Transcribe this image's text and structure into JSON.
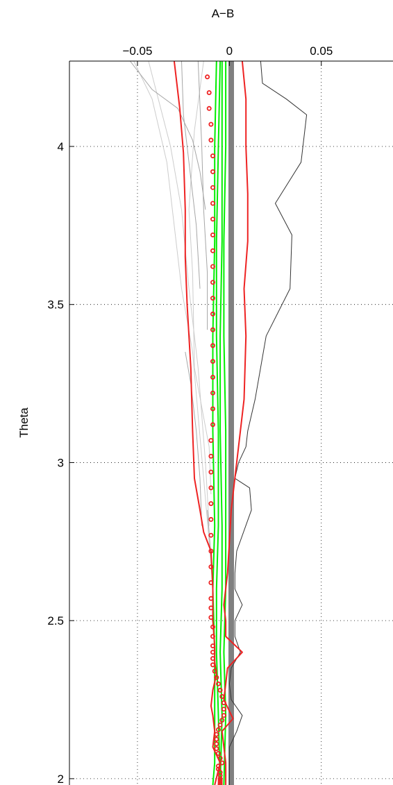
{
  "chart_data": {
    "type": "line",
    "title": "A−B",
    "xlabel": "A−B",
    "ylabel": "Theta",
    "x_axis_position": "top",
    "xlim": [
      -0.087,
      0.089
    ],
    "ylim": [
      1.98,
      4.27
    ],
    "xticks": [
      -0.05,
      0,
      0.05
    ],
    "xtick_labels": [
      "−0.05",
      "0",
      "0.05"
    ],
    "yticks": [
      2,
      2.5,
      3,
      3.5,
      4
    ],
    "ytick_labels": [
      "2",
      "2.5",
      "3",
      "3.5",
      "4"
    ],
    "grid": true,
    "colors": {
      "gray_light": "#cccccc",
      "gray_mid": "#a6a6a6",
      "gray_dark": "#333333",
      "green": "#00ee00",
      "red": "#ee2222",
      "zero_band": "#808080"
    },
    "series": [
      {
        "style": "zero-band",
        "color": "#808080",
        "x": [
          0.001,
          0.001
        ],
        "y": [
          1.98,
          4.27
        ]
      },
      {
        "style": "line",
        "color": "#cccccc",
        "x": [
          -0.014,
          -0.019,
          -0.022,
          -0.02,
          -0.019,
          -0.011,
          -0.01
        ],
        "y": [
          4.27,
          4.05,
          3.8,
          3.6,
          3.3,
          3.05,
          2.9
        ]
      },
      {
        "style": "line",
        "color": "#cccccc",
        "x": [
          -0.052,
          -0.042,
          -0.034,
          -0.03,
          -0.026,
          -0.02,
          -0.017,
          -0.014,
          -0.011,
          -0.009
        ],
        "y": [
          4.27,
          4.15,
          3.95,
          3.75,
          3.55,
          3.35,
          3.15,
          2.95,
          2.75,
          2.6
        ]
      },
      {
        "style": "line",
        "color": "#cccccc",
        "x": [
          -0.044,
          -0.032,
          -0.026,
          -0.022,
          -0.017,
          -0.013,
          -0.011
        ],
        "y": [
          4.27,
          4.0,
          3.8,
          3.55,
          3.3,
          3.0,
          2.8
        ]
      },
      {
        "style": "line",
        "color": "#a6a6a6",
        "x": [
          -0.054,
          -0.042,
          -0.028,
          -0.02,
          -0.016,
          -0.013
        ],
        "y": [
          4.27,
          4.18,
          4.12,
          4.02,
          3.92,
          3.8
        ]
      },
      {
        "style": "line",
        "color": "#a6a6a6",
        "x": [
          -0.026,
          -0.025,
          -0.022,
          -0.018,
          -0.016
        ],
        "y": [
          4.27,
          4.1,
          3.95,
          3.75,
          3.55
        ]
      },
      {
        "style": "line",
        "color": "#a6a6a6",
        "x": [
          -0.017,
          -0.015,
          -0.014,
          -0.012,
          -0.012
        ],
        "y": [
          4.27,
          4.0,
          3.8,
          3.6,
          3.42
        ]
      },
      {
        "style": "line",
        "color": "#a6a6a6",
        "x": [
          -0.024,
          -0.021,
          -0.018,
          -0.016,
          -0.015
        ],
        "y": [
          3.35,
          3.25,
          3.1,
          2.95,
          2.8
        ]
      },
      {
        "style": "line",
        "color": "#a6a6a6",
        "x": [
          -0.012,
          -0.011,
          -0.01,
          -0.009
        ],
        "y": [
          2.85,
          2.78,
          2.7,
          2.62
        ]
      },
      {
        "style": "line",
        "color": "#333333",
        "x": [
          0.017,
          0.018,
          0.031,
          0.042,
          0.039,
          0.025,
          0.034,
          0.033,
          0.02,
          0.014,
          0.01,
          0.009,
          0.005,
          0.003,
          0.011,
          0.012,
          0.004,
          0.003,
          0.003,
          0.007,
          0.003,
          0.003,
          0.006,
          0.001,
          0.0,
          0.001,
          0.007,
          0.004,
          0.0,
          0.0
        ],
        "y": [
          4.27,
          4.2,
          4.15,
          4.1,
          3.95,
          3.82,
          3.72,
          3.55,
          3.4,
          3.2,
          3.1,
          3.05,
          3.0,
          2.95,
          2.92,
          2.85,
          2.72,
          2.65,
          2.6,
          2.55,
          2.5,
          2.45,
          2.4,
          2.35,
          2.3,
          2.25,
          2.2,
          2.15,
          2.1,
          1.98
        ]
      },
      {
        "style": "line",
        "color": "#00ee00",
        "x": [
          -0.007,
          -0.008,
          -0.008,
          -0.009,
          -0.009,
          -0.008,
          -0.009,
          -0.008,
          -0.008,
          -0.008,
          -0.009
        ],
        "y": [
          4.27,
          4.0,
          3.7,
          3.4,
          3.1,
          2.8,
          2.6,
          2.4,
          2.2,
          2.05,
          1.98
        ]
      },
      {
        "style": "line",
        "color": "#00ee00",
        "x": [
          -0.002,
          -0.002,
          -0.003,
          -0.003,
          -0.002,
          -0.002,
          -0.002,
          -0.003,
          -0.002,
          -0.003
        ],
        "y": [
          4.27,
          4.0,
          3.7,
          3.4,
          3.1,
          2.8,
          2.6,
          2.4,
          2.2,
          1.98
        ]
      },
      {
        "style": "line",
        "color": "#00ee00",
        "x": [
          -0.004,
          -0.004,
          -0.004,
          -0.005,
          -0.005,
          -0.004,
          -0.004,
          -0.005,
          -0.004,
          -0.005
        ],
        "y": [
          4.27,
          4.0,
          3.7,
          3.4,
          3.1,
          2.8,
          2.6,
          2.4,
          2.2,
          1.98
        ]
      },
      {
        "style": "line",
        "color": "#00ee00",
        "x": [
          -0.005,
          -0.006,
          -0.007,
          -0.007,
          -0.006,
          -0.006,
          -0.007,
          -0.007,
          -0.006,
          -0.005
        ],
        "y": [
          4.27,
          4.0,
          3.7,
          3.4,
          3.1,
          2.8,
          2.6,
          2.4,
          2.2,
          1.98
        ]
      },
      {
        "style": "line",
        "color": "#ee2222",
        "x": [
          -0.03,
          -0.027,
          -0.025,
          -0.024,
          -0.024,
          -0.023,
          -0.021,
          -0.02,
          -0.019,
          -0.016,
          -0.014,
          -0.01,
          -0.009,
          -0.009,
          -0.008,
          -0.008,
          -0.007,
          -0.009,
          -0.01,
          -0.009,
          -0.008,
          -0.009,
          -0.005,
          -0.008
        ],
        "y": [
          4.27,
          4.12,
          3.98,
          3.8,
          3.65,
          3.5,
          3.3,
          3.1,
          2.95,
          2.85,
          2.78,
          2.72,
          2.6,
          2.5,
          2.42,
          2.37,
          2.33,
          2.28,
          2.23,
          2.2,
          2.15,
          2.1,
          2.05,
          1.98
        ]
      },
      {
        "style": "line",
        "color": "#ee2222",
        "x": [
          0.007,
          0.009,
          0.009,
          0.01,
          0.01,
          0.008,
          0.009,
          0.008,
          0.004,
          0.001,
          0.0,
          -0.001,
          -0.003,
          -0.002,
          -0.002,
          0.007,
          -0.001,
          -0.002,
          -0.003,
          0.002,
          -0.004,
          -0.002,
          -0.002
        ],
        "y": [
          4.27,
          4.15,
          4.0,
          3.85,
          3.7,
          3.55,
          3.4,
          3.2,
          3.0,
          2.85,
          2.75,
          2.65,
          2.55,
          2.5,
          2.45,
          2.4,
          2.35,
          2.3,
          2.25,
          2.19,
          2.15,
          2.05,
          1.98
        ]
      },
      {
        "style": "markers",
        "color": "#ee2222",
        "x": [
          -0.012,
          -0.011,
          -0.011,
          -0.01,
          -0.01,
          -0.009,
          -0.009,
          -0.009,
          -0.009,
          -0.009,
          -0.009,
          -0.009,
          -0.009,
          -0.009,
          -0.009,
          -0.009,
          -0.009,
          -0.009,
          -0.009,
          -0.009,
          -0.009,
          -0.009,
          -0.009,
          -0.01,
          -0.01,
          -0.01,
          -0.01,
          -0.01,
          -0.01,
          -0.01,
          -0.01,
          -0.01,
          -0.01,
          -0.01,
          -0.01,
          -0.01,
          -0.009,
          -0.009,
          -0.009,
          -0.009,
          -0.009,
          -0.009,
          -0.008,
          -0.007,
          -0.006,
          -0.005,
          -0.004,
          -0.003,
          -0.003,
          -0.003,
          -0.004,
          -0.005,
          -0.006,
          -0.007,
          -0.007,
          -0.007,
          -0.007,
          -0.006,
          -0.005,
          -0.004,
          -0.006,
          -0.006,
          -0.005,
          -0.005,
          -0.005,
          -0.005,
          -0.005,
          -0.005,
          -0.005,
          -0.005,
          -0.005,
          -0.005,
          -0.005,
          -0.005,
          -0.005
        ],
        "y": [
          4.22,
          4.17,
          4.12,
          4.07,
          4.02,
          3.97,
          3.92,
          3.87,
          3.82,
          3.77,
          3.72,
          3.67,
          3.62,
          3.57,
          3.52,
          3.47,
          3.42,
          3.37,
          3.32,
          3.27,
          3.22,
          3.17,
          3.12,
          3.07,
          3.02,
          2.97,
          2.92,
          2.87,
          2.82,
          2.77,
          2.72,
          2.67,
          2.62,
          2.57,
          2.54,
          2.51,
          2.48,
          2.45,
          2.42,
          2.4,
          2.38,
          2.36,
          2.34,
          2.32,
          2.3,
          2.28,
          2.26,
          2.24,
          2.22,
          2.2,
          2.185,
          2.17,
          2.155,
          2.14,
          2.125,
          2.11,
          2.095,
          2.08,
          2.065,
          2.05,
          2.04,
          2.03,
          2.02,
          2.01,
          2.0,
          1.995,
          1.99,
          1.985,
          1.98,
          1.98,
          1.98,
          1.98,
          1.98,
          1.98,
          1.98
        ]
      }
    ]
  }
}
